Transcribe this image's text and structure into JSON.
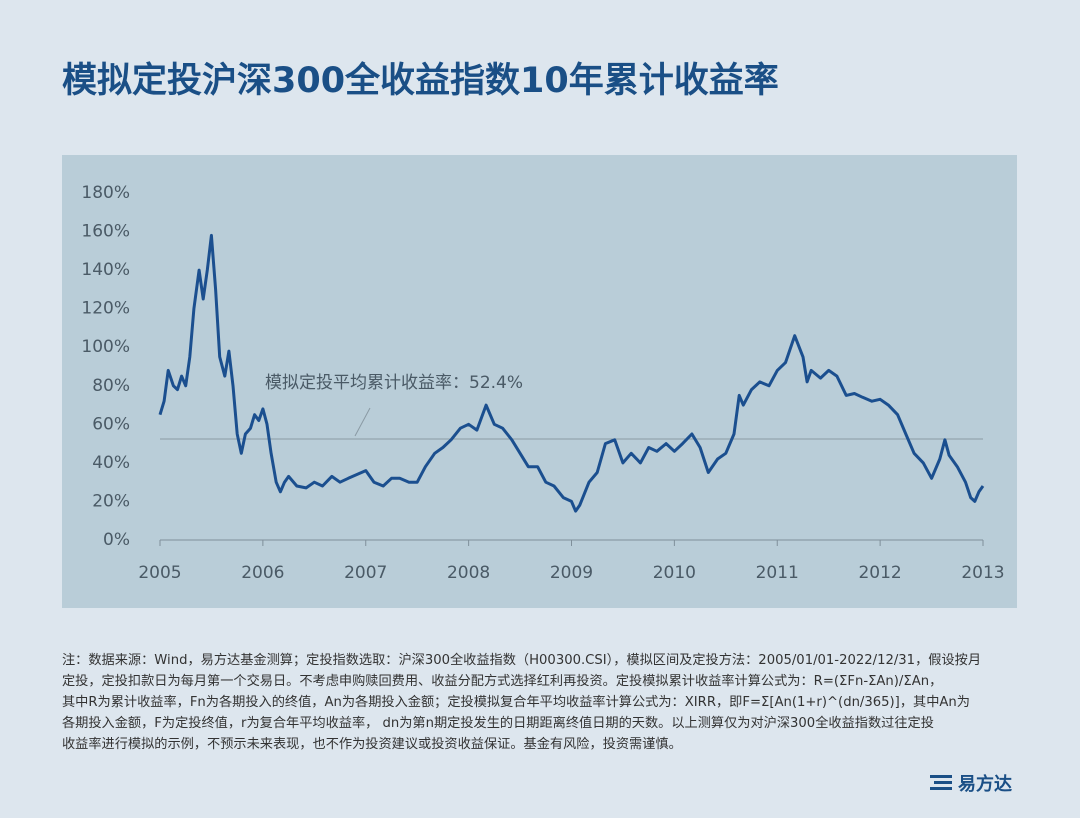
{
  "chart_data": {
    "type": "line",
    "title": "模拟定投沪深300全收益指数10年累计收益率",
    "x": [
      2005.0,
      2005.04,
      2005.08,
      2005.13,
      2005.17,
      2005.21,
      2005.25,
      2005.29,
      2005.33,
      2005.38,
      2005.42,
      2005.46,
      2005.5,
      2005.54,
      2005.58,
      2005.63,
      2005.67,
      2005.71,
      2005.75,
      2005.79,
      2005.83,
      2005.88,
      2005.92,
      2005.96,
      2006.0,
      2006.04,
      2006.08,
      2006.13,
      2006.17,
      2006.21,
      2006.25,
      2006.33,
      2006.42,
      2006.5,
      2006.58,
      2006.67,
      2006.75,
      2006.83,
      2007.0,
      2007.08,
      2007.17,
      2007.25,
      2007.33,
      2007.42,
      2007.5,
      2007.58,
      2007.67,
      2007.75,
      2007.83,
      2007.92,
      2008.0,
      2008.08,
      2008.17,
      2008.25,
      2008.33,
      2008.42,
      2008.5,
      2008.58,
      2008.67,
      2008.75,
      2008.83,
      2008.92,
      2009.0,
      2009.04,
      2009.08,
      2009.17,
      2009.25,
      2009.33,
      2009.42,
      2009.5,
      2009.58,
      2009.67,
      2009.75,
      2009.83,
      2009.92,
      2010.0,
      2010.08,
      2010.17,
      2010.25,
      2010.33,
      2010.42,
      2010.5,
      2010.58,
      2010.63,
      2010.67,
      2010.75,
      2010.83,
      2010.92,
      2011.0,
      2011.08,
      2011.17,
      2011.25,
      2011.29,
      2011.33,
      2011.42,
      2011.5,
      2011.58,
      2011.67,
      2011.75,
      2011.83,
      2011.92,
      2012.0,
      2012.08,
      2012.17,
      2012.25,
      2012.33,
      2012.42,
      2012.5,
      2012.58,
      2012.63,
      2012.67,
      2012.75,
      2012.83,
      2012.88,
      2012.92,
      2012.96,
      2013.0
    ],
    "series": [
      {
        "color": "#1b4f8f",
        "values": [
          65,
          72,
          88,
          80,
          78,
          85,
          80,
          95,
          120,
          140,
          125,
          140,
          158,
          130,
          95,
          85,
          98,
          80,
          55,
          45,
          55,
          58,
          65,
          62,
          68,
          60,
          45,
          30,
          25,
          30,
          33,
          28,
          27,
          30,
          28,
          33,
          30,
          32,
          36,
          30,
          28,
          32,
          32,
          30,
          30,
          38,
          45,
          48,
          52,
          58,
          60,
          57,
          70,
          60,
          58,
          52,
          45,
          38,
          38,
          30,
          28,
          22,
          20,
          15,
          18,
          30,
          35,
          50,
          52,
          40,
          45,
          40,
          48,
          46,
          50,
          46,
          50,
          55,
          48,
          35,
          42,
          45,
          55,
          75,
          70,
          78,
          82,
          80,
          88,
          92,
          106,
          95,
          82,
          88,
          84,
          88,
          85,
          75,
          76,
          74,
          72,
          73,
          70,
          65,
          55,
          45,
          40,
          32,
          42,
          52,
          44,
          38,
          30,
          22,
          20,
          25,
          28
        ]
      }
    ],
    "reference_line": {
      "value": 52.4,
      "label": "模拟定投平均累计收益率：52.4%",
      "color": "#8a9aa4"
    },
    "xlim": [
      2005,
      2013
    ],
    "xticks": [
      2005,
      2006,
      2007,
      2008,
      2009,
      2010,
      2011,
      2012,
      2013
    ],
    "ylim": [
      0,
      180
    ],
    "yticks": [
      {
        "value": 0,
        "label": "0%"
      },
      {
        "value": 20,
        "label": "20%"
      },
      {
        "value": 40,
        "label": "40%"
      },
      {
        "value": 60,
        "label": "60%"
      },
      {
        "value": 80,
        "label": "80%"
      },
      {
        "value": 100,
        "label": "100%"
      },
      {
        "value": 120,
        "label": "120%"
      },
      {
        "value": 140,
        "label": "140%"
      },
      {
        "value": 160,
        "label": "160%"
      },
      {
        "value": 180,
        "label": "180%"
      }
    ],
    "grid": false
  },
  "footnote": {
    "lines": [
      "注：数据来源：Wind，易方达基金测算；定投指数选取：沪深300全收益指数（H00300.CSI），模拟区间及定投方法：2005/01/01-2022/12/31，假设按月",
      "定投，定投扣款日为每月第一个交易日。不考虑申购赎回费用、收益分配方式选择红利再投资。定投模拟累计收益率计算公式为：R=(ΣFn-ΣAn)/ΣAn，",
      "其中R为累计收益率，Fn为各期投入的终值，An为各期投入金额；定投模拟复合年平均收益率计算公式为：XIRR，即F=Σ[An(1+r)^(dn/365)]，其中An为",
      "各期投入金额，F为定投终值，r为复合年平均收益率， dn为第n期定投发生的日期距离终值日期的天数。以上测算仅为对沪深300全收益指数过往定投",
      "收益率进行模拟的示例，不预示未来表现，也不作为投资建议或投资收益保证。基金有风险，投资需谨慎。"
    ]
  },
  "logo": {
    "text": "易方达"
  }
}
